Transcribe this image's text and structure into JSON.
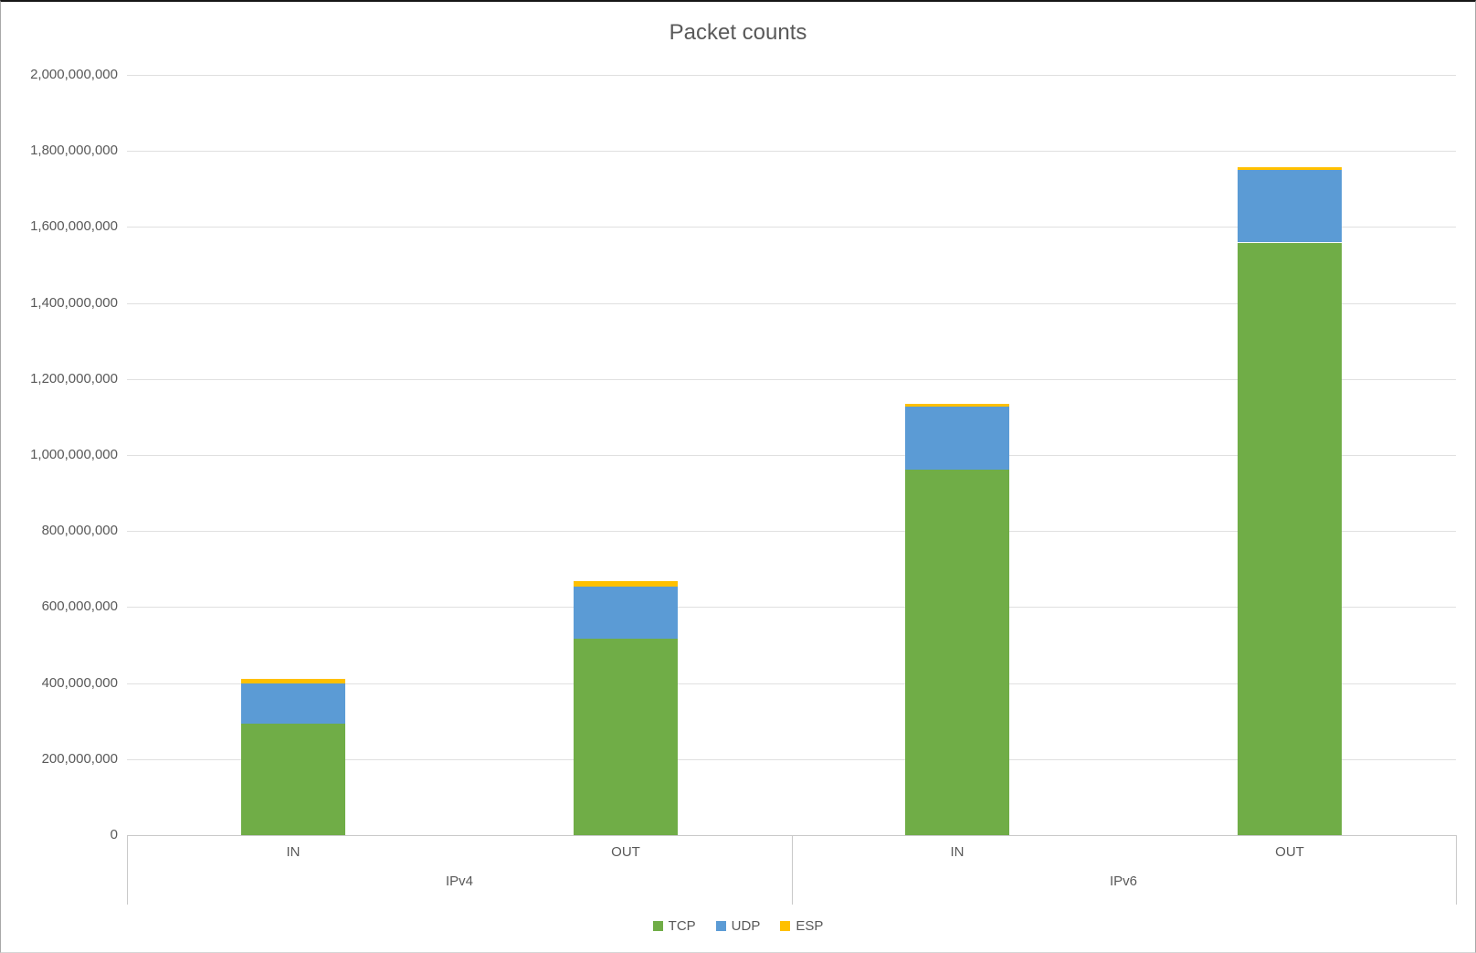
{
  "frame": {
    "background": "#ffffff"
  },
  "chart_data": {
    "type": "bar",
    "stacked": true,
    "title": "Packet counts",
    "categories": [
      "IN",
      "OUT",
      "IN",
      "OUT"
    ],
    "groups": [
      {
        "label": "IPv4",
        "span": 2
      },
      {
        "label": "IPv6",
        "span": 2
      }
    ],
    "series": [
      {
        "name": "TCP",
        "color": "#70AD47",
        "values": [
          293000000,
          516000000,
          962000000,
          1559000000
        ]
      },
      {
        "name": "UDP",
        "color": "#5B9BD5",
        "values": [
          106000000,
          138000000,
          166000000,
          192000000
        ]
      },
      {
        "name": "ESP",
        "color": "#FFC000",
        "values": [
          13000000,
          14000000,
          6000000,
          6000000
        ]
      }
    ],
    "ylim": [
      0,
      2000000000
    ],
    "ytick_interval": 200000000,
    "ytick_labels": [
      "0",
      "200,000,000",
      "400,000,000",
      "600,000,000",
      "800,000,000",
      "1,000,000,000",
      "1,200,000,000",
      "1,400,000,000",
      "1,600,000,000",
      "1,800,000,000",
      "2,000,000,000"
    ],
    "grid": true,
    "legend_position": "bottom",
    "legend": [
      {
        "label": "TCP",
        "color": "#70AD47"
      },
      {
        "label": "UDP",
        "color": "#5B9BD5"
      },
      {
        "label": "ESP",
        "color": "#FFC000"
      }
    ],
    "colors": {
      "text": "#595959",
      "gridline": "#E0E0E0",
      "axis_line": "#C9C9C9"
    }
  }
}
